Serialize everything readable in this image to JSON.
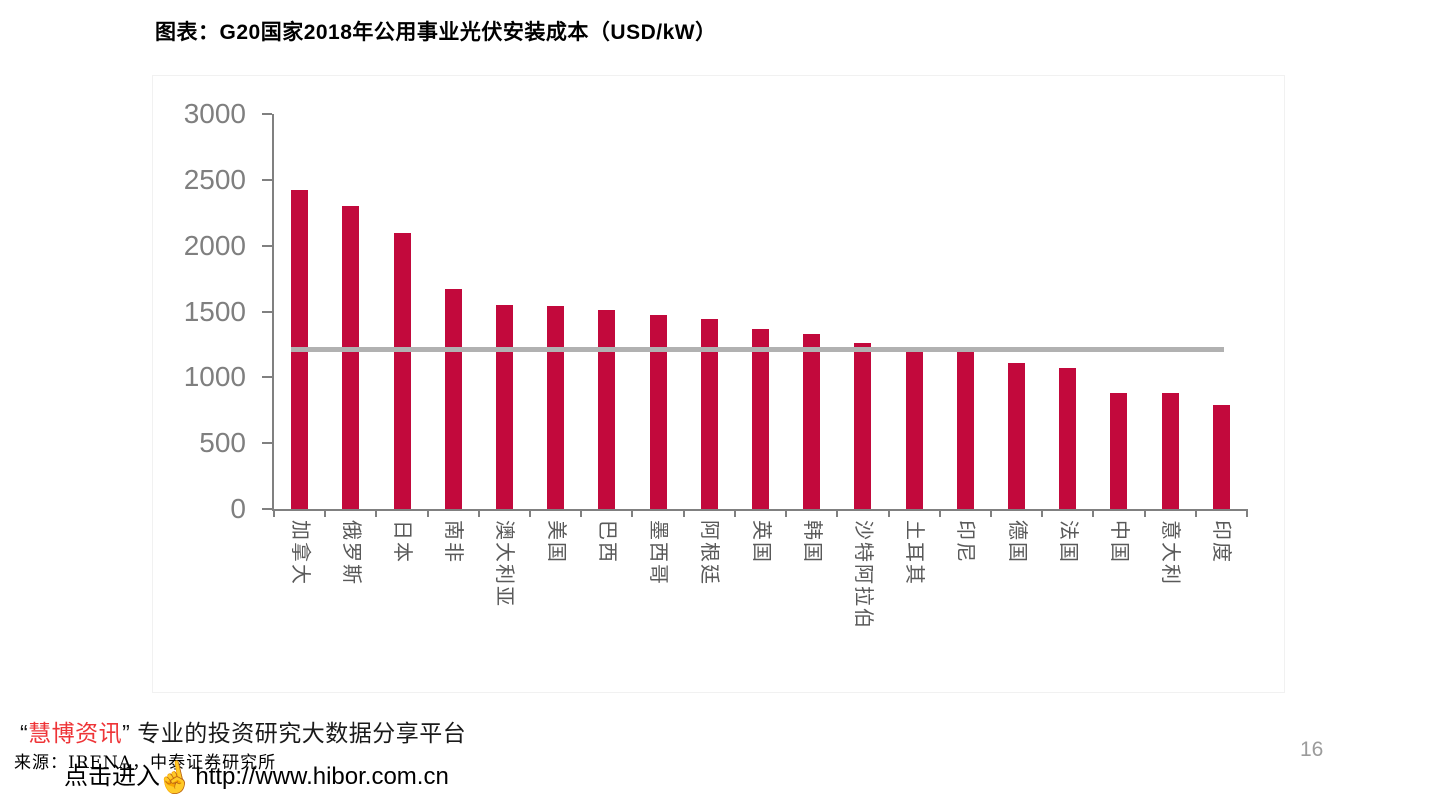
{
  "page": {
    "title": "图表：G20国家2018年公用事业光伏安装成本（USD/kW）"
  },
  "chart_data": {
    "type": "bar",
    "title": "图表：G20国家2018年公用事业光伏安装成本（USD/kW）",
    "unit": "USD/kW",
    "categories": [
      "加拿大",
      "俄罗斯",
      "日本",
      "南非",
      "澳大利亚",
      "美国",
      "巴西",
      "墨西哥",
      "阿根廷",
      "英国",
      "韩国",
      "沙特阿拉伯",
      "土耳其",
      "印尼",
      "德国",
      "法国",
      "中国",
      "意大利",
      "印度"
    ],
    "values": [
      2420,
      2300,
      2100,
      1670,
      1550,
      1540,
      1510,
      1470,
      1440,
      1370,
      1330,
      1260,
      1200,
      1200,
      1110,
      1070,
      880,
      880,
      790
    ],
    "average_line": 1210,
    "ylim": [
      0,
      3000
    ],
    "yticks": [
      0,
      500,
      1000,
      1500,
      2000,
      2500,
      3000
    ],
    "grid": "off",
    "legend": "none",
    "bar_color": "#C2093C",
    "average_line_color": "#B1B1B1",
    "axis_color": "#808080",
    "tick_label_color": "#7F7F7F",
    "category_label_color": "#595959"
  },
  "footer": {
    "brand": {
      "open_quote": "“",
      "name": "慧博资讯",
      "close_quote": "”",
      "tagline": "专业的投资研究大数据分享平台",
      "name_color": "#EE3437"
    },
    "source": "来源：IRENA，中泰证券研究所",
    "click_prompt": "点击进入",
    "hand_icon": "pointing-hand-icon",
    "url": "http://www.hibor.com.cn",
    "page_number": "16"
  }
}
